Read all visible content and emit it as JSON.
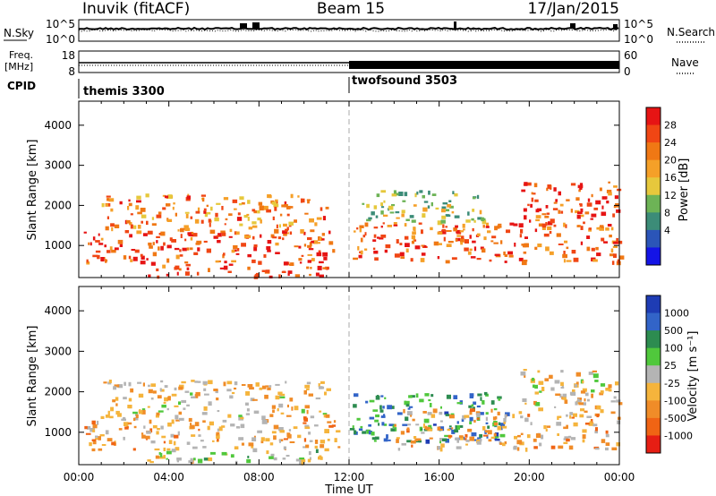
{
  "header": {
    "station": "Inuvik (fitACF)",
    "beam": "Beam 15",
    "date": "17/Jan/2015"
  },
  "top_panels": {
    "nsky_label": "N.Sky",
    "nsky_ticks": [
      "10^5",
      "10^0"
    ],
    "nsearch_label": "N.Search",
    "nsearch_ticks": [
      "10^5",
      "10^0"
    ],
    "freq_label": "Freq.",
    "freq_unit": "[MHz]",
    "freq_ticks": [
      "18",
      "8"
    ],
    "nave_label": "Nave",
    "nave_ticks": [
      "60",
      "0"
    ],
    "cpid_label": "CPID",
    "cpid_segments": [
      {
        "name": "themis 3300",
        "start_hour": 0,
        "end_hour": 12
      },
      {
        "name": "twofsound 3503",
        "start_hour": 12,
        "end_hour": 24
      }
    ]
  },
  "x_axis": {
    "label": "Time UT",
    "ticks": [
      "00:00",
      "04:00",
      "08:00",
      "12:00",
      "16:00",
      "20:00",
      "00:00"
    ]
  },
  "panels": {
    "power": {
      "ylabel": "Slant Range [km]",
      "yticks": [
        "4000",
        "3000",
        "2000",
        "1000"
      ],
      "cbar_label": "Power [dB]",
      "cbar_ticks": [
        "28",
        "24",
        "20",
        "16",
        "12",
        "8",
        "4"
      ],
      "colors": [
        "#1414e6",
        "#2b55b8",
        "#3c8c78",
        "#6db356",
        "#e6c83c",
        "#f5a028",
        "#f07814",
        "#f04614",
        "#e61414"
      ]
    },
    "velocity": {
      "ylabel": "Slant Range [km]",
      "yticks": [
        "4000",
        "3000",
        "2000",
        "1000"
      ],
      "cbar_label": "Velocity [m s⁻¹]",
      "cbar_ticks": [
        "1000",
        "500",
        "100",
        "25",
        "-25",
        "-100",
        "-500",
        "-1000"
      ],
      "colors": [
        "#1e3cb4",
        "#3264c8",
        "#2d8c50",
        "#50c83c",
        "#b4b4b4",
        "#f5b43c",
        "#f08c28",
        "#f06414",
        "#e61e14"
      ],
      "ground_scatter_color": "#b4b4b4"
    }
  },
  "chart_data": [
    {
      "type": "heatmap",
      "title": "Beam 15",
      "xlabel": "Time UT",
      "ylabel": "Slant Range [km]",
      "xlim": [
        0,
        24
      ],
      "ylim": [
        200,
        4600
      ],
      "colorbar": {
        "label": "Power [dB]",
        "range": [
          0,
          30
        ],
        "ticks": [
          4,
          8,
          12,
          16,
          20,
          24,
          28
        ]
      },
      "regions": [
        {
          "t": [
            0.2,
            11.5
          ],
          "range_km": [
            600,
            1400
          ],
          "power_db": 26
        },
        {
          "t": [
            1.0,
            11.0
          ],
          "range_km": [
            1400,
            2300
          ],
          "power_db": 22
        },
        {
          "t": [
            3.0,
            11.0
          ],
          "range_km": [
            250,
            600
          ],
          "power_db": 27
        },
        {
          "t": [
            12.0,
            24.0
          ],
          "range_km": [
            600,
            1600
          ],
          "power_db": 24
        },
        {
          "t": [
            19.5,
            24.0
          ],
          "range_km": [
            1600,
            2600
          ],
          "power_db": 26
        },
        {
          "t": [
            12.5,
            18.0
          ],
          "range_km": [
            1600,
            2400
          ],
          "power_db": 12
        }
      ]
    },
    {
      "type": "heatmap",
      "title": "Beam 15",
      "xlabel": "Time UT",
      "ylabel": "Slant Range [km]",
      "xlim": [
        0,
        24
      ],
      "ylim": [
        200,
        4600
      ],
      "colorbar": {
        "label": "Velocity [m s⁻¹]",
        "range": [
          -1000,
          1000
        ],
        "ticks": [
          1000,
          500,
          100,
          25,
          -25,
          -100,
          -500,
          -1000
        ]
      },
      "regions": [
        {
          "t": [
            0.2,
            11.5
          ],
          "range_km": [
            600,
            1400
          ],
          "velocity": -300
        },
        {
          "t": [
            1.0,
            11.0
          ],
          "range_km": [
            1400,
            2300
          ],
          "velocity": -200
        },
        {
          "t": [
            3.0,
            11.0
          ],
          "range_km": [
            250,
            600
          ],
          "velocity": 0
        },
        {
          "t": [
            12.0,
            19.0
          ],
          "range_km": [
            800,
            2000
          ],
          "velocity": 500
        },
        {
          "t": [
            14.0,
            24.0
          ],
          "range_km": [
            600,
            1600
          ],
          "velocity": -300
        },
        {
          "t": [
            19.5,
            24.0
          ],
          "range_km": [
            1600,
            2600
          ],
          "velocity": -200
        }
      ]
    }
  ]
}
